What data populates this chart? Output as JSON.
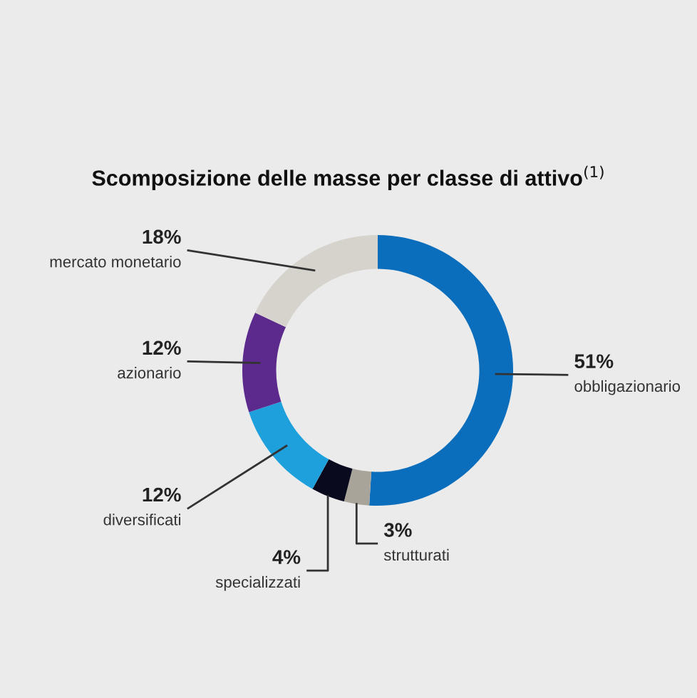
{
  "chart_data": {
    "type": "donut",
    "title": "Scomposizione delle masse per classe di attivo$^{(1)}$",
    "categories": [
      "obbligazionario",
      "strutturati",
      "specializzati",
      "diversificati",
      "azionario",
      "mercato monetario"
    ],
    "values": [
      51,
      3,
      4,
      12,
      12,
      18
    ],
    "colors": [
      "#0a6ebd",
      "#a9a49a",
      "#0a0a1e",
      "#1ea0dc",
      "#5b2a8c",
      "#d6d2cc"
    ],
    "value_labels": [
      "51%",
      "3%",
      "4%",
      "12%",
      "12%",
      "18%"
    ]
  }
}
